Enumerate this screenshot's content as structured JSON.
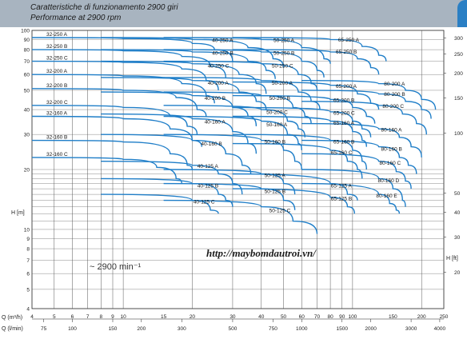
{
  "header": {
    "title_it": "Caratteristiche di funzionamento 2900 giri",
    "title_en": "Performance at 2900 rpm"
  },
  "chart_data": {
    "type": "line",
    "title": "Caratteristiche di funzionamento 2900 giri",
    "subtitle": "Performance at 2900 rpm",
    "xscale": "log",
    "yscale": "log",
    "xlim": [
      4,
      250
    ],
    "ylim": [
      4,
      100
    ],
    "ylabel_left": "H [m]",
    "ylabel_right": "H [ft]",
    "xlabel_q_m3h": "Q (m³/h)",
    "xlabel_q_lmin": "Q (l/min)",
    "speed_annotation": "~ 2900 min⁻¹",
    "watermark": "http://maybomdautroi.vn/",
    "left_ticks": [
      4,
      5,
      6,
      7,
      8,
      9,
      10,
      20,
      30,
      40,
      50,
      60,
      70,
      80,
      90,
      100
    ],
    "right_ticks": [
      20,
      30,
      40,
      50,
      100,
      150,
      200,
      250,
      300
    ],
    "q_m3h_ticks": [
      4,
      5,
      6,
      7,
      8,
      9,
      10,
      15,
      20,
      30,
      40,
      50,
      60,
      70,
      80,
      90,
      100,
      150,
      200,
      250
    ],
    "q_lmin_ticks": [
      75,
      100,
      150,
      200,
      300,
      500,
      750,
      1000,
      1500,
      2000,
      3000,
      4000
    ],
    "series": [
      {
        "name": "32-250 A",
        "points": [
          [
            4,
            92
          ],
          [
            10,
            91
          ],
          [
            20,
            86
          ],
          [
            25,
            80
          ],
          [
            30,
            70
          ]
        ]
      },
      {
        "name": "32-250 B",
        "points": [
          [
            4,
            80
          ],
          [
            10,
            79
          ],
          [
            18,
            74
          ],
          [
            24,
            66
          ],
          [
            28,
            58
          ]
        ]
      },
      {
        "name": "32-250 C",
        "points": [
          [
            4,
            70
          ],
          [
            10,
            69
          ],
          [
            18,
            64
          ],
          [
            23,
            56
          ],
          [
            26,
            50
          ]
        ]
      },
      {
        "name": "32-200 A",
        "points": [
          [
            4,
            60
          ],
          [
            10,
            59
          ],
          [
            18,
            54
          ],
          [
            23,
            47
          ],
          [
            25,
            43
          ]
        ]
      },
      {
        "name": "32-200 B",
        "points": [
          [
            4,
            51
          ],
          [
            10,
            50
          ],
          [
            17,
            46
          ],
          [
            21,
            40
          ],
          [
            23,
            37
          ]
        ]
      },
      {
        "name": "32-200 C",
        "points": [
          [
            4,
            42
          ],
          [
            10,
            41
          ],
          [
            16,
            37
          ],
          [
            19,
            33
          ],
          [
            21,
            30
          ]
        ]
      },
      {
        "name": "32-160 A",
        "points": [
          [
            4,
            37
          ],
          [
            10,
            36
          ],
          [
            16,
            32
          ],
          [
            20,
            28
          ],
          [
            22,
            26
          ]
        ]
      },
      {
        "name": "32-160 B",
        "points": [
          [
            4,
            28
          ],
          [
            10,
            27.5
          ],
          [
            16,
            24
          ],
          [
            19,
            21
          ],
          [
            20,
            20
          ]
        ]
      },
      {
        "name": "32-160 C",
        "points": [
          [
            4,
            23
          ],
          [
            10,
            22.5
          ],
          [
            14,
            20.5
          ],
          [
            17,
            18
          ],
          [
            18,
            17
          ]
        ]
      },
      {
        "name": "40-250 A",
        "points": [
          [
            8,
            92
          ],
          [
            20,
            90
          ],
          [
            35,
            82
          ],
          [
            45,
            72
          ],
          [
            50,
            65
          ]
        ]
      },
      {
        "name": "40-250 B",
        "points": [
          [
            8,
            80
          ],
          [
            20,
            78
          ],
          [
            35,
            70
          ],
          [
            42,
            63
          ],
          [
            46,
            57
          ]
        ]
      },
      {
        "name": "40-250 C",
        "points": [
          [
            8,
            70
          ],
          [
            20,
            68
          ],
          [
            32,
            60
          ],
          [
            38,
            54
          ],
          [
            42,
            48
          ]
        ]
      },
      {
        "name": "40-200 A",
        "points": [
          [
            8,
            58
          ],
          [
            20,
            56
          ],
          [
            32,
            49
          ],
          [
            38,
            44
          ],
          [
            42,
            40
          ]
        ]
      },
      {
        "name": "40-200 B",
        "points": [
          [
            8,
            49
          ],
          [
            20,
            47
          ],
          [
            30,
            41
          ],
          [
            35,
            37
          ],
          [
            38,
            33
          ]
        ]
      },
      {
        "name": "40-160 A",
        "points": [
          [
            8,
            38
          ],
          [
            20,
            36
          ],
          [
            30,
            31
          ],
          [
            35,
            27
          ],
          [
            38,
            24
          ]
        ]
      },
      {
        "name": "40-160 B",
        "points": [
          [
            8,
            30
          ],
          [
            20,
            28
          ],
          [
            28,
            24
          ],
          [
            33,
            21
          ],
          [
            36,
            19
          ]
        ]
      },
      {
        "name": "40-125 A",
        "points": [
          [
            8,
            22
          ],
          [
            20,
            21
          ],
          [
            26,
            19
          ],
          [
            30,
            17
          ],
          [
            33,
            15
          ]
        ]
      },
      {
        "name": "40-125 B",
        "points": [
          [
            8,
            18
          ],
          [
            20,
            17
          ],
          [
            26,
            15
          ],
          [
            28,
            14
          ],
          [
            30,
            13
          ]
        ]
      },
      {
        "name": "40-125 C",
        "points": [
          [
            8,
            15
          ],
          [
            20,
            14
          ],
          [
            24,
            12.5
          ],
          [
            26,
            12
          ]
        ]
      },
      {
        "name": "50-250 A",
        "points": [
          [
            15,
            92
          ],
          [
            40,
            90
          ],
          [
            60,
            82
          ],
          [
            75,
            72
          ],
          [
            80,
            68
          ]
        ]
      },
      {
        "name": "50-250 B",
        "points": [
          [
            15,
            80
          ],
          [
            40,
            78
          ],
          [
            60,
            70
          ],
          [
            70,
            63
          ],
          [
            75,
            58
          ]
        ]
      },
      {
        "name": "50-250 C",
        "points": [
          [
            15,
            70
          ],
          [
            40,
            68
          ],
          [
            58,
            60
          ],
          [
            66,
            54
          ],
          [
            70,
            50
          ]
        ]
      },
      {
        "name": "50-200 A",
        "points": [
          [
            15,
            58
          ],
          [
            40,
            56
          ],
          [
            58,
            49
          ],
          [
            66,
            44
          ],
          [
            72,
            40
          ]
        ]
      },
      {
        "name": "50-200 B",
        "points": [
          [
            15,
            49
          ],
          [
            40,
            47
          ],
          [
            55,
            41
          ],
          [
            62,
            37
          ],
          [
            66,
            34
          ]
        ]
      },
      {
        "name": "50-200 C",
        "points": [
          [
            15,
            42
          ],
          [
            40,
            40
          ],
          [
            52,
            35
          ],
          [
            58,
            32
          ],
          [
            62,
            29
          ]
        ]
      },
      {
        "name": "50-160 A",
        "points": [
          [
            15,
            37
          ],
          [
            40,
            35
          ],
          [
            52,
            30
          ],
          [
            58,
            27
          ],
          [
            60,
            25
          ]
        ]
      },
      {
        "name": "50-160 B",
        "points": [
          [
            15,
            30
          ],
          [
            40,
            28
          ],
          [
            50,
            25
          ],
          [
            56,
            22
          ],
          [
            60,
            20
          ]
        ]
      },
      {
        "name": "50-125 A",
        "points": [
          [
            15,
            20
          ],
          [
            40,
            19
          ],
          [
            50,
            17
          ],
          [
            56,
            15
          ]
        ]
      },
      {
        "name": "50-125 B",
        "points": [
          [
            15,
            17
          ],
          [
            40,
            16
          ],
          [
            50,
            14
          ],
          [
            56,
            12.5
          ]
        ]
      },
      {
        "name": "50-125 C",
        "points": [
          [
            15,
            14
          ],
          [
            40,
            13
          ],
          [
            55,
            11
          ],
          [
            70,
            9.5
          ]
        ]
      },
      {
        "name": "65-250 A",
        "points": [
          [
            30,
            92
          ],
          [
            80,
            90
          ],
          [
            110,
            83
          ],
          [
            130,
            75
          ],
          [
            140,
            70
          ]
        ]
      },
      {
        "name": "65-250 B",
        "points": [
          [
            30,
            80
          ],
          [
            80,
            78
          ],
          [
            105,
            72
          ],
          [
            120,
            65
          ],
          [
            130,
            60
          ]
        ]
      },
      {
        "name": "65-200 A",
        "points": [
          [
            30,
            55
          ],
          [
            80,
            53
          ],
          [
            105,
            48
          ],
          [
            120,
            43
          ],
          [
            130,
            40
          ]
        ]
      },
      {
        "name": "65-200 B",
        "points": [
          [
            30,
            47
          ],
          [
            80,
            45
          ],
          [
            100,
            41
          ],
          [
            115,
            37
          ],
          [
            125,
            34
          ]
        ]
      },
      {
        "name": "65-200 C",
        "points": [
          [
            30,
            41
          ],
          [
            80,
            39
          ],
          [
            100,
            35
          ],
          [
            110,
            32
          ],
          [
            120,
            29
          ]
        ]
      },
      {
        "name": "65-160 A",
        "points": [
          [
            30,
            37
          ],
          [
            80,
            35
          ],
          [
            100,
            31
          ],
          [
            110,
            28
          ],
          [
            115,
            26
          ]
        ]
      },
      {
        "name": "65-160 B",
        "points": [
          [
            30,
            30
          ],
          [
            80,
            28
          ],
          [
            100,
            25
          ],
          [
            110,
            22
          ],
          [
            115,
            20
          ]
        ]
      },
      {
        "name": "65-160 C",
        "points": [
          [
            30,
            27
          ],
          [
            80,
            25
          ],
          [
            95,
            22
          ],
          [
            105,
            20
          ],
          [
            110,
            18
          ]
        ]
      },
      {
        "name": "65-125 A",
        "points": [
          [
            30,
            19
          ],
          [
            80,
            17
          ],
          [
            95,
            15
          ],
          [
            105,
            14
          ]
        ]
      },
      {
        "name": "65-125 B",
        "points": [
          [
            30,
            16
          ],
          [
            80,
            14.5
          ],
          [
            95,
            13
          ],
          [
            102,
            12
          ]
        ]
      },
      {
        "name": "80-200 A",
        "points": [
          [
            60,
            56
          ],
          [
            130,
            54
          ],
          [
            170,
            50
          ],
          [
            200,
            45
          ],
          [
            230,
            40
          ]
        ]
      },
      {
        "name": "80-200 B",
        "points": [
          [
            60,
            50
          ],
          [
            130,
            48
          ],
          [
            170,
            44
          ],
          [
            200,
            40
          ],
          [
            220,
            36
          ]
        ]
      },
      {
        "name": "80-200 C",
        "points": [
          [
            60,
            44
          ],
          [
            130,
            42
          ],
          [
            165,
            38
          ],
          [
            190,
            34
          ],
          [
            210,
            30
          ]
        ]
      },
      {
        "name": "80-160 A",
        "points": [
          [
            60,
            34
          ],
          [
            130,
            32
          ],
          [
            160,
            29
          ],
          [
            180,
            26
          ],
          [
            200,
            23
          ]
        ]
      },
      {
        "name": "80-160 B",
        "points": [
          [
            60,
            28
          ],
          [
            130,
            26
          ],
          [
            160,
            23
          ],
          [
            175,
            21
          ],
          [
            190,
            19
          ]
        ]
      },
      {
        "name": "80-160 C",
        "points": [
          [
            60,
            24
          ],
          [
            130,
            22
          ],
          [
            155,
            19.5
          ],
          [
            170,
            17.5
          ],
          [
            180,
            16
          ]
        ]
      },
      {
        "name": "80-160 D",
        "points": [
          [
            60,
            20
          ],
          [
            130,
            18
          ],
          [
            150,
            16
          ],
          [
            165,
            14
          ],
          [
            170,
            13
          ]
        ]
      },
      {
        "name": "80-160 E",
        "points": [
          [
            60,
            17
          ],
          [
            130,
            15
          ],
          [
            145,
            13.5
          ],
          [
            155,
            12.5
          ],
          [
            160,
            12
          ]
        ]
      }
    ]
  }
}
